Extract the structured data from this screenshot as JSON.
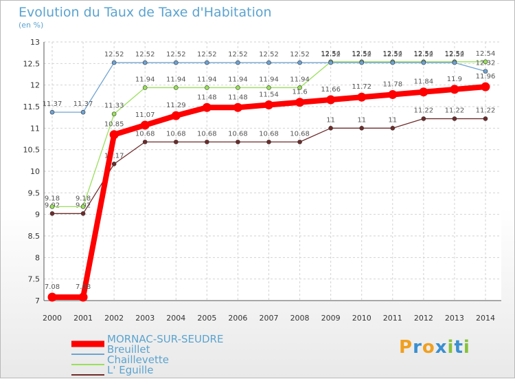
{
  "title": "Evolution du Taux de Taxe d'Habitation",
  "subtitle": "(en %)",
  "logo_text": "Proxiti",
  "chart_data": {
    "type": "line",
    "x": [
      "2000",
      "2001",
      "2002",
      "2003",
      "2004",
      "2005",
      "2006",
      "2007",
      "2008",
      "2009",
      "2010",
      "2011",
      "2012",
      "2013",
      "2014"
    ],
    "ylim": [
      7,
      13
    ],
    "yticks": [
      "7",
      "7.5",
      "8",
      "8.5",
      "9",
      "9.5",
      "10",
      "10.5",
      "11",
      "11.5",
      "12",
      "12.5",
      "13"
    ],
    "grid": true,
    "legend_position": "bottom-left",
    "series": [
      {
        "name": "MORNAC-SUR-SEUDRE",
        "color": "#ff0000",
        "values": [
          7.08,
          7.08,
          10.85,
          11.07,
          11.29,
          11.48,
          11.48,
          11.54,
          11.6,
          11.66,
          11.72,
          11.78,
          11.84,
          11.9,
          11.96
        ]
      },
      {
        "name": "Breuillet",
        "color": "#6fa3d3",
        "values": [
          11.37,
          11.37,
          12.52,
          12.52,
          12.52,
          12.52,
          12.52,
          12.52,
          12.52,
          12.52,
          12.52,
          12.52,
          12.52,
          12.52,
          12.32
        ]
      },
      {
        "name": "Chaillevette",
        "color": "#99e05a",
        "values": [
          9.18,
          9.18,
          11.33,
          11.94,
          11.94,
          11.94,
          11.94,
          11.94,
          11.94,
          12.54,
          12.54,
          12.54,
          12.54,
          12.54,
          12.54
        ]
      },
      {
        "name": "L' Eguille",
        "color": "#6e2b2b",
        "values": [
          9.02,
          9.02,
          10.17,
          10.68,
          10.68,
          10.68,
          10.68,
          10.68,
          10.68,
          11,
          11,
          11,
          11.22,
          11.22,
          11.22
        ]
      }
    ]
  }
}
